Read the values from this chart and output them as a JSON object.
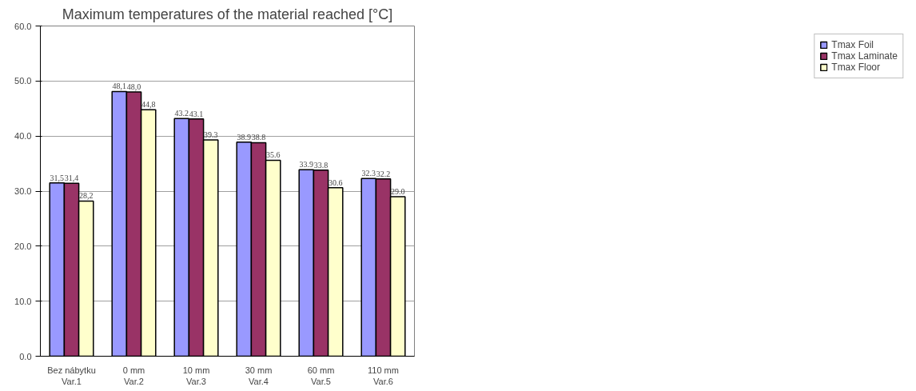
{
  "chart_data": {
    "type": "bar",
    "title": "Maximum temperatures of the material reached [°C]",
    "categories": [
      "Bez nábytku\nVar.1",
      "0 mm\nVar.2",
      "10 mm\nVar.3",
      "30 mm\nVar.4",
      "60 mm\nVar.5",
      "110 mm\nVar.6"
    ],
    "series": [
      {
        "name": "Tmax Foil",
        "color": "#9999ff",
        "values": [
          31.5,
          48.1,
          43.2,
          38.9,
          33.9,
          32.3
        ],
        "value_labels": [
          "31,5",
          "48,1",
          "43.2",
          "38.9",
          "33.9",
          "32.3"
        ]
      },
      {
        "name": "Tmax Laminate",
        "color": "#993366",
        "values": [
          31.4,
          48.0,
          43.1,
          38.8,
          33.8,
          32.2
        ],
        "value_labels": [
          "31,4",
          "48,0",
          "43.1",
          "38.8",
          "33.8",
          "32.2"
        ]
      },
      {
        "name": "Tmax Floor",
        "color": "#ffffcc",
        "values": [
          28.2,
          44.8,
          39.3,
          35.6,
          30.6,
          29.0
        ],
        "value_labels": [
          "28,2",
          "44,8",
          "39.3",
          "35.6",
          "30.6",
          "29.0"
        ]
      }
    ],
    "ylim": [
      0,
      60
    ],
    "yticks": [
      {
        "value": 0,
        "label": "0.0"
      },
      {
        "value": 10,
        "label": "10.0"
      },
      {
        "value": 20,
        "label": "20.0"
      },
      {
        "value": 30,
        "label": "30.0"
      },
      {
        "value": 40,
        "label": "40.0"
      },
      {
        "value": 50,
        "label": "50.0"
      },
      {
        "value": 60,
        "label": "60.0"
      }
    ],
    "grid": "y",
    "legend": "right"
  }
}
